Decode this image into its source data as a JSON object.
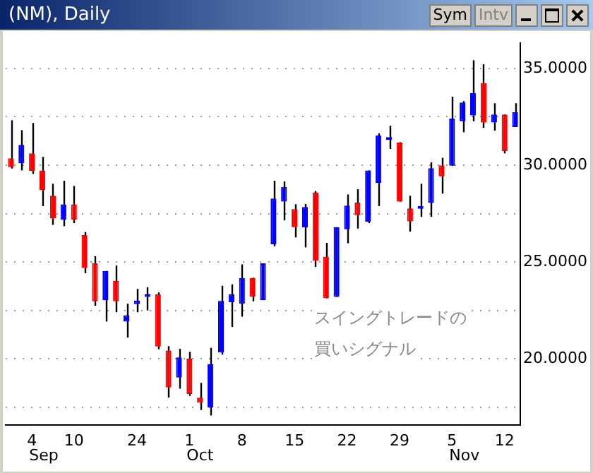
{
  "chart_data": {
    "type": "candlestick",
    "title": "(NM), Daily",
    "categories": [
      null,
      null,
      "4",
      null,
      null,
      null,
      "10",
      null,
      null,
      null,
      null,
      null,
      "24",
      null,
      null,
      null,
      null,
      "1",
      null,
      null,
      null,
      null,
      "8",
      null,
      null,
      null,
      null,
      "15",
      null,
      null,
      null,
      null,
      "22",
      null,
      null,
      null,
      null,
      "29",
      null,
      null,
      null,
      null,
      "5",
      null,
      null,
      null,
      null,
      "12",
      null
    ],
    "ohlc": [
      [
        30.36,
        32.32,
        29.83,
        29.9
      ],
      [
        30.1,
        31.81,
        29.73,
        31.05
      ],
      [
        30.61,
        32.18,
        29.55,
        29.71
      ],
      [
        29.73,
        30.43,
        27.89,
        28.72
      ],
      [
        28.42,
        29.04,
        26.92,
        27.26
      ],
      [
        27.19,
        29.2,
        26.85,
        27.98
      ],
      [
        27.98,
        28.93,
        27.01,
        27.19
      ],
      [
        26.39,
        26.55,
        24.42,
        24.7
      ],
      [
        24.93,
        25.3,
        22.74,
        22.97
      ],
      [
        23.04,
        24.54,
        21.93,
        24.54
      ],
      [
        24.03,
        24.82,
        22.41,
        22.97
      ],
      [
        21.93,
        22.85,
        21.1,
        22.25
      ],
      [
        22.83,
        23.61,
        22.41,
        23.01
      ],
      [
        23.2,
        23.7,
        22.5,
        23.29
      ],
      [
        23.34,
        23.43,
        20.5,
        20.64
      ],
      [
        20.43,
        20.66,
        18.0,
        18.53
      ],
      [
        19.04,
        20.52,
        18.46,
        20.08
      ],
      [
        20.01,
        20.36,
        18.09,
        18.19
      ],
      [
        18.0,
        18.76,
        17.36,
        17.73
      ],
      [
        17.49,
        20.57,
        17.08,
        19.73
      ],
      [
        20.33,
        23.78,
        20.22,
        22.99
      ],
      [
        22.92,
        23.85,
        21.65,
        23.34
      ],
      [
        22.85,
        24.88,
        22.18,
        24.17
      ],
      [
        24.17,
        24.19,
        22.97,
        23.2
      ],
      [
        23.04,
        24.93,
        23.04,
        24.93
      ],
      [
        25.92,
        29.2,
        25.81,
        28.28
      ],
      [
        28.12,
        29.16,
        27.15,
        28.88
      ],
      [
        27.73,
        27.98,
        26.27,
        26.8
      ],
      [
        26.78,
        28.0,
        25.76,
        27.84
      ],
      [
        28.6,
        28.67,
        24.75,
        25.07
      ],
      [
        25.28,
        25.99,
        23.13,
        23.13
      ],
      [
        23.2,
        26.8,
        23.2,
        26.8
      ],
      [
        26.69,
        28.49,
        25.97,
        27.91
      ],
      [
        28.07,
        28.76,
        26.73,
        27.42
      ],
      [
        27.08,
        29.73,
        27.01,
        29.73
      ],
      [
        29.09,
        31.65,
        27.89,
        31.54
      ],
      [
        31.3,
        32.04,
        30.84,
        31.42
      ],
      [
        31.17,
        31.19,
        28.12,
        28.12
      ],
      [
        27.77,
        28.42,
        26.57,
        27.1
      ],
      [
        27.75,
        29.04,
        27.33,
        27.8
      ],
      [
        28.05,
        30.15,
        27.33,
        29.85
      ],
      [
        29.99,
        30.38,
        28.53,
        29.43
      ],
      [
        29.97,
        33.54,
        29.97,
        32.41
      ],
      [
        32.27,
        33.31,
        31.7,
        33.24
      ],
      [
        32.57,
        35.42,
        32.27,
        33.73
      ],
      [
        34.24,
        35.21,
        31.93,
        32.21
      ],
      [
        32.21,
        33.2,
        31.79,
        32.62
      ],
      [
        32.62,
        32.62,
        30.61,
        30.73
      ],
      [
        31.97,
        33.2,
        31.97,
        32.74
      ]
    ],
    "colors": [
      "#ff0000",
      "#0000ff",
      "#ff0000",
      "#ff0000",
      "#ff0000",
      "#0000ff",
      "#ff0000",
      "#ff0000",
      "#ff0000",
      "#0000ff",
      "#ff0000",
      "#0000ff",
      "#0000ff",
      "#0000ff",
      "#ff0000",
      "#ff0000",
      "#0000ff",
      "#ff0000",
      "#ff0000",
      "#0000ff",
      "#0000ff",
      "#0000ff",
      "#0000ff",
      "#ff0000",
      "#0000ff",
      "#0000ff",
      "#0000ff",
      "#ff0000",
      "#0000ff",
      "#ff0000",
      "#ff0000",
      "#0000ff",
      "#0000ff",
      "#ff0000",
      "#0000ff",
      "#0000ff",
      "#0000ff",
      "#ff0000",
      "#ff0000",
      "#0000ff",
      "#0000ff",
      "#ff0000",
      "#0000ff",
      "#0000ff",
      "#0000ff",
      "#ff0000",
      "#0000ff",
      "#ff0000",
      "#0000ff"
    ],
    "ylim": [
      16.6,
      36.3
    ],
    "yticks": [
      {
        "value": 17.5,
        "label": null
      },
      {
        "value": 20,
        "label": "20.0000"
      },
      {
        "value": 22.5,
        "label": null
      },
      {
        "value": 25,
        "label": "25.0000"
      },
      {
        "value": 27.5,
        "label": null
      },
      {
        "value": 30,
        "label": "30.0000"
      },
      {
        "value": 32.5,
        "label": null
      },
      {
        "value": 35,
        "label": "35.0000"
      }
    ],
    "grid": "y",
    "annotations": [
      "Sym",
      "Intv",
      "Sep",
      "Oct",
      "Nov",
      "スイングトレードの",
      "買いシグナル"
    ]
  }
}
